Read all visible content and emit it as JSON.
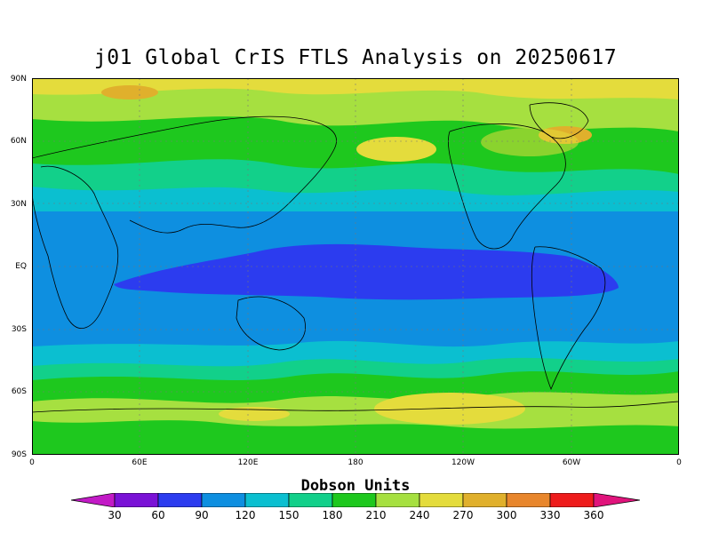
{
  "title": "j01 Global CrIS FTLS Analysis on 20250617",
  "axes": {
    "y_ticks": [
      "90N",
      "60N",
      "30N",
      "EQ",
      "30S",
      "60S",
      "90S"
    ],
    "x_ticks": [
      "0",
      "60E",
      "120E",
      "180",
      "120W",
      "60W",
      "0"
    ]
  },
  "colorbar": {
    "title": "Dobson Units",
    "labels": [
      "30",
      "60",
      "90",
      "120",
      "150",
      "180",
      "210",
      "240",
      "270",
      "300",
      "330",
      "360"
    ],
    "colors": [
      "#c21ac6",
      "#7a12d6",
      "#2c3cef",
      "#0e8fe0",
      "#0bbfd0",
      "#12d08a",
      "#1ec81e",
      "#a6e040",
      "#e4dc3c",
      "#e0b02c",
      "#e8862c",
      "#ee1c1c",
      "#e0147c"
    ]
  },
  "map_colors": {
    "dark_blue": "#2c3cef",
    "blue": "#0e8fe0",
    "cyan": "#0bbfd0",
    "teal_green": "#12d08a",
    "green": "#1ec81e",
    "light_green": "#a6e040",
    "yellow": "#e4dc3c",
    "orange": "#e0b02c"
  }
}
